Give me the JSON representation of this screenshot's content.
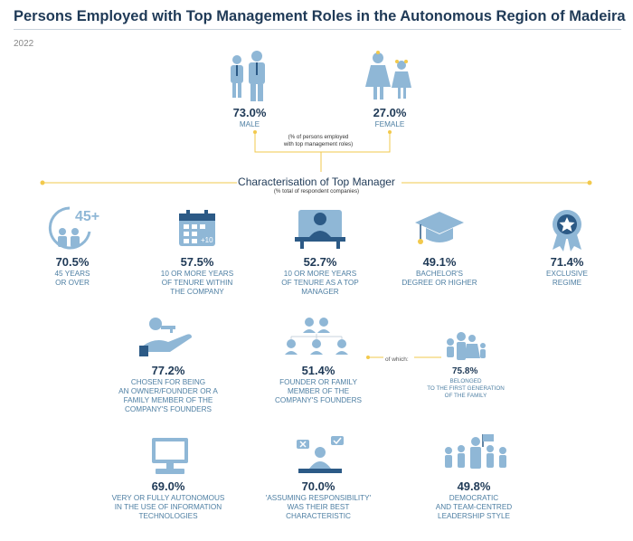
{
  "header": {
    "title": "Persons Employed with Top Management Roles in the Autonomous Region of Madeira",
    "year": "2022"
  },
  "gender": {
    "male": {
      "value": "73.0%",
      "label": "MALE"
    },
    "female": {
      "value": "27.0%",
      "label": "FEMALE"
    },
    "note": "(% of persons employed\nwith top management roles)"
  },
  "section": {
    "title": "Characterisation of Top Manager",
    "subtitle": "(% total of respondent companies)"
  },
  "stats": [
    {
      "value": "70.5%",
      "label": "45 YEARS\nOR OVER",
      "icon": "age-45-plus-icon",
      "badge": "45+"
    },
    {
      "value": "57.5%",
      "label": "10 OR MORE YEARS\nOF TENURE WITHIN\nTHE COMPANY",
      "icon": "calendar-icon",
      "badge": "+10"
    },
    {
      "value": "52.7%",
      "label": "10 OR MORE YEARS\nOF TENURE AS A TOP\nMANAGER",
      "icon": "manager-desk-icon"
    },
    {
      "value": "49.1%",
      "label": "BACHELOR'S\nDEGREE OR HIGHER",
      "icon": "graduation-cap-icon"
    },
    {
      "value": "71.4%",
      "label": "EXCLUSIVE\nREGIME",
      "icon": "award-ribbon-icon"
    },
    {
      "value": "77.2%",
      "label": "CHOSEN FOR BEING\nAN OWNER/FOUNDER OR A\nFAMILY MEMBER OF THE\nCOMPANY'S FOUNDERS",
      "icon": "key-hand-icon"
    },
    {
      "value": "51.4%",
      "label": "FOUNDER OR FAMILY\nMEMBER OF THE\nCOMPANY'S FOUNDERS",
      "icon": "family-tree-icon"
    },
    {
      "value": "69.0%",
      "label": "VERY OR FULLY AUTONOMOUS\nIN THE USE OF INFORMATION\nTECHNOLOGIES",
      "icon": "computer-icon"
    },
    {
      "value": "70.0%",
      "label": "'ASSUMING RESPONSIBILITY'\nWAS THEIR BEST\nCHARACTERISTIC",
      "icon": "responsibility-icon"
    },
    {
      "value": "49.8%",
      "label": "DEMOCRATIC\nAND TEAM-CENTRED\nLEADERSHIP STYLE",
      "icon": "team-leader-icon"
    }
  ],
  "of_which": {
    "label": "of which:",
    "value": "75.8%",
    "text": "BELONGED\nTO THE FIRST GENERATION\nOF THE FAMILY",
    "icon": "family-icon"
  },
  "colors": {
    "accent": "#f2c94c",
    "icon": "#8fb7d6",
    "title": "#1f3a57",
    "label": "#4e7fa3"
  }
}
